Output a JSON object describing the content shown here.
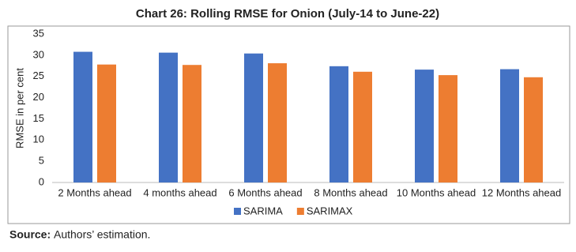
{
  "chart_data": {
    "type": "bar",
    "title": "Chart 26: Rolling RMSE for Onion (July-14 to June-22)",
    "y_label": "RMSE in per cent",
    "categories": [
      "2 Months ahead",
      "4 months ahead",
      "6 Months ahead",
      "8 Months ahead",
      "10 Months ahead",
      "12 Months ahead"
    ],
    "series": [
      {
        "name": "SARIMA",
        "color": "#4472c4",
        "values": [
          30.8,
          30.6,
          30.4,
          27.4,
          26.6,
          26.7
        ]
      },
      {
        "name": "SARIMAX",
        "color": "#ed7d31",
        "values": [
          27.8,
          27.7,
          28.1,
          26.1,
          25.3,
          24.8
        ]
      }
    ],
    "ylim": [
      0,
      35
    ],
    "yticks": [
      0,
      5,
      10,
      15,
      20,
      25,
      30,
      35
    ],
    "grid": false,
    "legend": "bottom"
  },
  "source": {
    "label": "Source:",
    "text": "Authors’ estimation."
  }
}
